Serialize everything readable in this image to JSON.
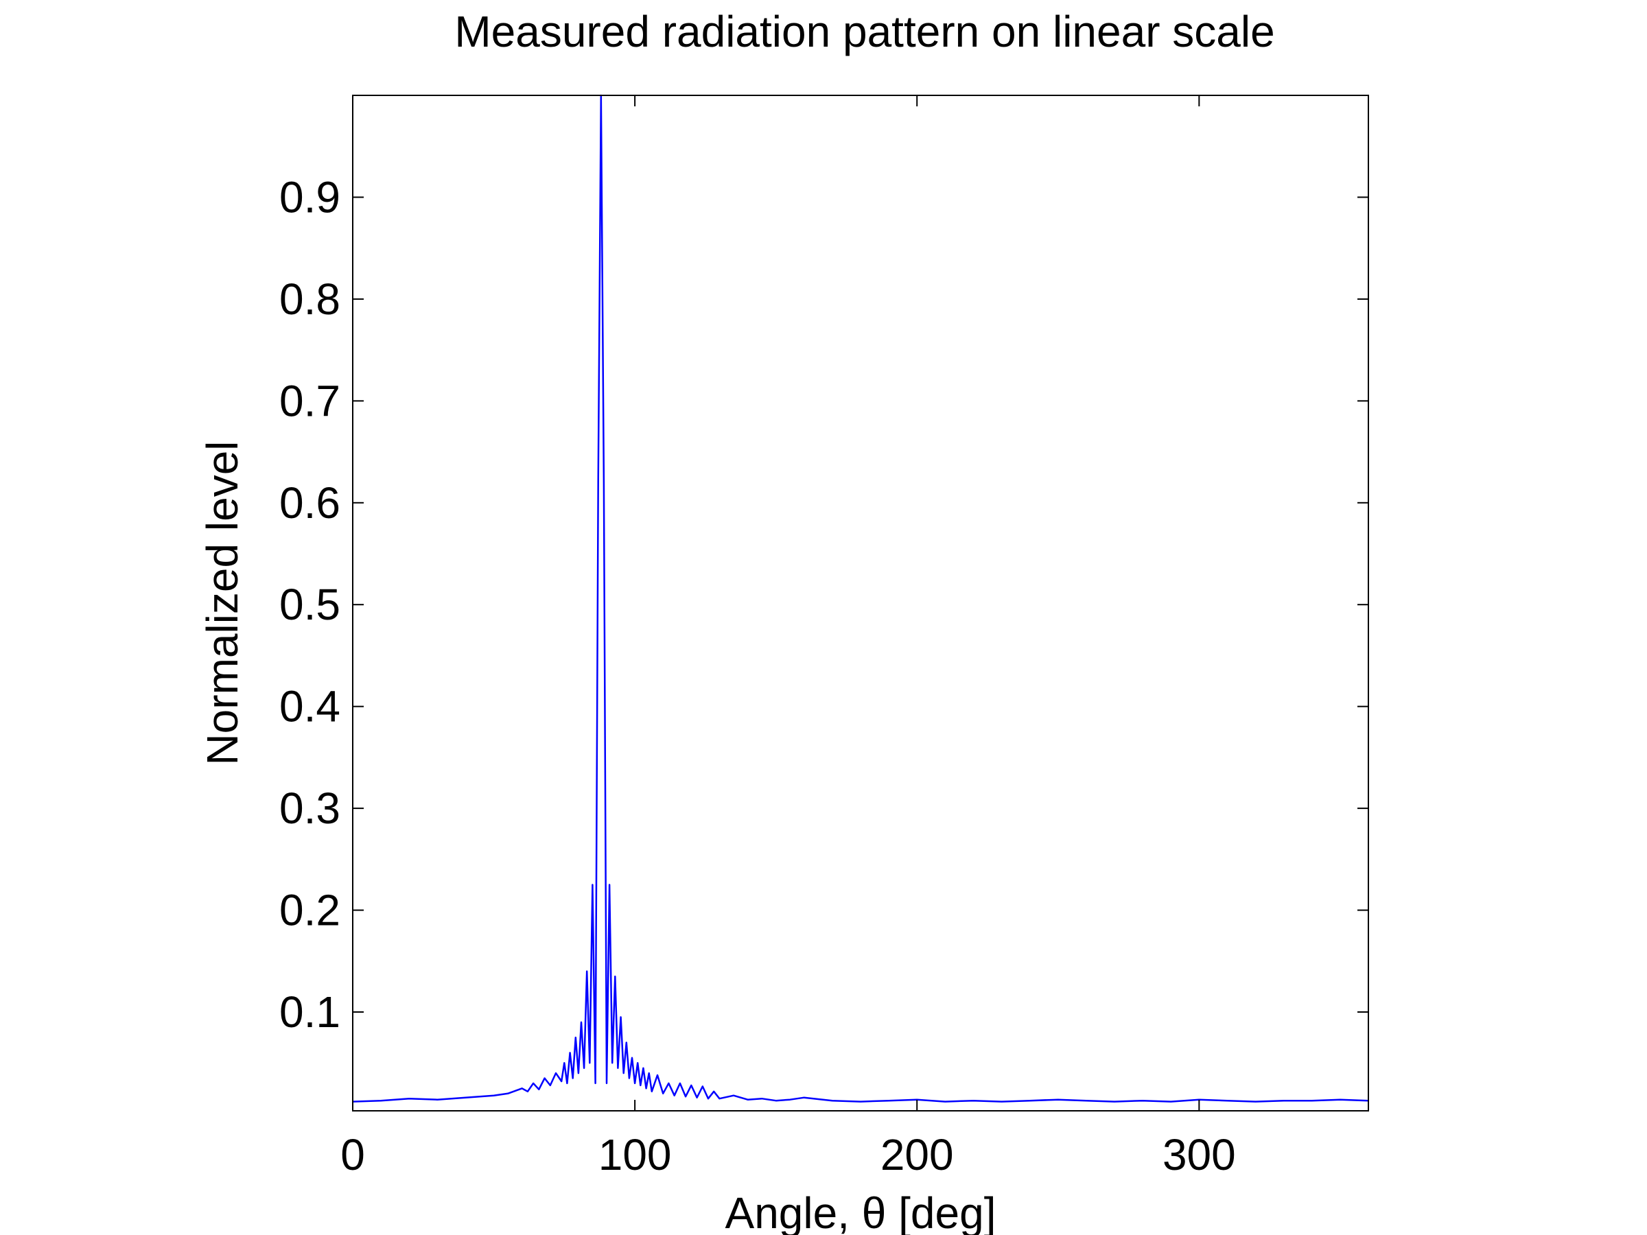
{
  "chart_data": {
    "type": "line",
    "title": "Measured radiation pattern on linear scale",
    "xlabel": "Angle, θ [deg]",
    "ylabel": "Normalized level",
    "xlim": [
      0,
      360
    ],
    "ylim": [
      0.003,
      1.0
    ],
    "xticks": [
      0,
      100,
      200,
      300
    ],
    "xtick_labels": [
      "0",
      "100",
      "200",
      "300"
    ],
    "yticks": [
      0.1,
      0.2,
      0.3,
      0.4,
      0.5,
      0.6,
      0.7,
      0.8,
      0.9
    ],
    "ytick_labels": [
      "0.1",
      "0.2",
      "0.3",
      "0.4",
      "0.5",
      "0.6",
      "0.7",
      "0.8",
      "0.9"
    ],
    "grid": false,
    "legend": "none",
    "series": [
      {
        "color": "#0000ff",
        "x": [
          0,
          10,
          20,
          30,
          40,
          50,
          55,
          60,
          62,
          64,
          66,
          68,
          70,
          72,
          74,
          75,
          76,
          77,
          78,
          79,
          80,
          81,
          82,
          83,
          84,
          85,
          86,
          87,
          88,
          89,
          90,
          91,
          92,
          93,
          94,
          95,
          96,
          97,
          98,
          99,
          100,
          101,
          102,
          103,
          104,
          105,
          106,
          108,
          110,
          112,
          114,
          116,
          118,
          120,
          122,
          124,
          126,
          128,
          130,
          135,
          140,
          145,
          150,
          155,
          160,
          170,
          180,
          190,
          200,
          210,
          220,
          230,
          240,
          250,
          260,
          270,
          280,
          290,
          300,
          310,
          320,
          330,
          340,
          350,
          360
        ],
        "y": [
          0.012,
          0.013,
          0.015,
          0.014,
          0.016,
          0.018,
          0.02,
          0.025,
          0.022,
          0.03,
          0.024,
          0.035,
          0.028,
          0.04,
          0.032,
          0.05,
          0.03,
          0.06,
          0.035,
          0.075,
          0.04,
          0.09,
          0.045,
          0.14,
          0.05,
          0.225,
          0.03,
          0.62,
          1.0,
          0.62,
          0.03,
          0.225,
          0.05,
          0.135,
          0.045,
          0.095,
          0.04,
          0.07,
          0.035,
          0.055,
          0.03,
          0.05,
          0.028,
          0.045,
          0.025,
          0.04,
          0.022,
          0.038,
          0.02,
          0.03,
          0.018,
          0.03,
          0.017,
          0.028,
          0.016,
          0.027,
          0.015,
          0.022,
          0.015,
          0.018,
          0.014,
          0.015,
          0.013,
          0.014,
          0.016,
          0.013,
          0.012,
          0.013,
          0.014,
          0.012,
          0.013,
          0.012,
          0.013,
          0.014,
          0.013,
          0.012,
          0.013,
          0.012,
          0.014,
          0.013,
          0.012,
          0.013,
          0.013,
          0.014,
          0.013
        ]
      }
    ]
  }
}
